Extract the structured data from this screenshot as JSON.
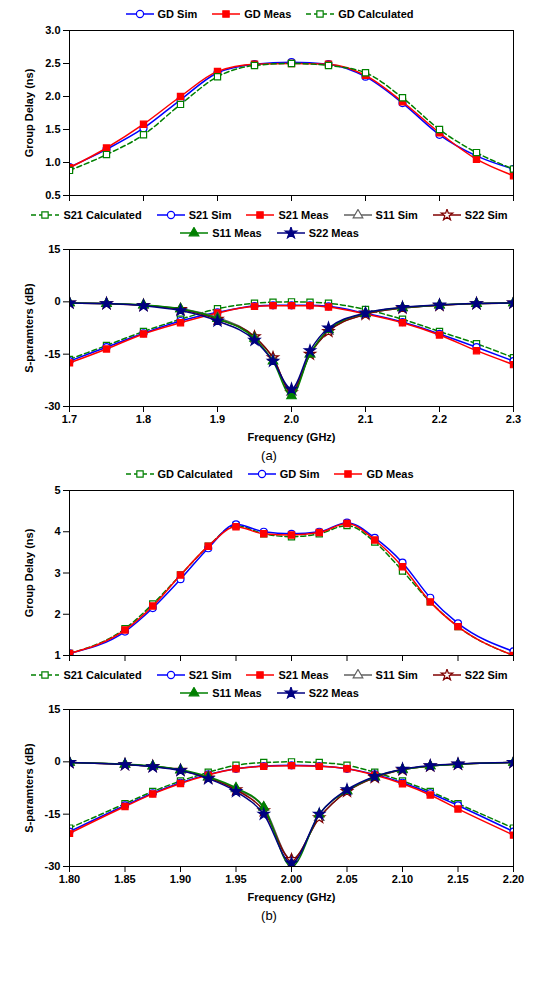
{
  "chart_data": [
    {
      "type": "line",
      "legend": "top",
      "grid": false,
      "tick_labels": "y",
      "y_label": "Group Delay (ns)",
      "xlim": [
        1.7,
        2.3
      ],
      "xticks": [
        1.7,
        1.8,
        1.9,
        {
          "value": 2,
          "label": "2.0"
        },
        2.1,
        2.2,
        2.3
      ],
      "ylim": [
        0.5,
        3.0
      ],
      "yticks": [
        0.5,
        {
          "value": 1,
          "label": "1.0"
        },
        1.5,
        {
          "value": 2,
          "label": "2.0"
        },
        2.5,
        {
          "value": 3,
          "label": "3.0"
        }
      ],
      "x": [
        1.7,
        1.75,
        1.8,
        1.85,
        1.9,
        1.95,
        2.0,
        2.05,
        2.1,
        2.15,
        2.2,
        2.25,
        2.3
      ],
      "series": [
        {
          "name": "GD Sim",
          "color": "#0000ff",
          "marker": "circle-open",
          "line_style": "solid",
          "values": [
            0.93,
            1.2,
            1.52,
            1.95,
            2.36,
            2.49,
            2.52,
            2.49,
            2.3,
            1.9,
            1.42,
            1.1,
            0.9
          ]
        },
        {
          "name": "GD Meas",
          "color": "#ff0000",
          "marker": "square-filled",
          "line_style": "solid",
          "values": [
            0.92,
            1.22,
            1.58,
            2.0,
            2.38,
            2.49,
            2.5,
            2.49,
            2.32,
            1.92,
            1.45,
            1.05,
            0.8
          ]
        },
        {
          "name": "GD Calculated",
          "color": "#008000",
          "marker": "square-open",
          "line_style": "dashed",
          "values": [
            0.88,
            1.12,
            1.42,
            1.88,
            2.3,
            2.47,
            2.5,
            2.47,
            2.36,
            1.98,
            1.5,
            1.15,
            0.9
          ]
        }
      ]
    },
    {
      "type": "line",
      "legend": "top",
      "grid": false,
      "caption": "(a)",
      "x_label": "Frequency (GHz)",
      "y_label": "S-paramters (dB)",
      "xlim": [
        1.7,
        2.3
      ],
      "xticks": [
        1.7,
        1.8,
        1.9,
        {
          "value": 2,
          "label": "2.0"
        },
        2.1,
        2.2,
        2.3
      ],
      "ylim": [
        -30,
        15
      ],
      "yticks": [
        -30,
        -15,
        0,
        15
      ],
      "x": [
        1.7,
        1.75,
        1.8,
        1.85,
        1.9,
        1.95,
        1.975,
        2.0,
        2.025,
        2.05,
        2.1,
        2.15,
        2.2,
        2.25,
        2.3
      ],
      "series": [
        {
          "name": "S21 Calculated",
          "color": "#008000",
          "marker": "square-open",
          "line_style": "dashed",
          "values": [
            -16.5,
            -12.5,
            -8.5,
            -5.0,
            -2.0,
            -0.4,
            -0.1,
            0,
            -0.1,
            -0.4,
            -2.2,
            -5.0,
            -8.5,
            -12,
            -16
          ]
        },
        {
          "name": "S21 Sim",
          "color": "#0000ff",
          "marker": "circle-open",
          "line_style": "solid",
          "values": [
            -17,
            -13,
            -9,
            -5.5,
            -3.0,
            -1.2,
            -1.0,
            -1.0,
            -1.0,
            -1.3,
            -3.3,
            -5.8,
            -9.2,
            -13,
            -17
          ]
        },
        {
          "name": "S21 Meas",
          "color": "#ff0000",
          "marker": "square-filled",
          "line_style": "solid",
          "values": [
            -17.5,
            -13.5,
            -9.2,
            -6.0,
            -3.2,
            -1.3,
            -1.1,
            -1.1,
            -1.1,
            -1.5,
            -3.5,
            -6.0,
            -9.5,
            -14,
            -18
          ]
        },
        {
          "name": "S11 Sim",
          "color": "#606060",
          "marker": "triangle-open",
          "line_style": "solid",
          "values": [
            -0.3,
            -0.5,
            -1.0,
            -2.0,
            -4.5,
            -10,
            -16,
            -26,
            -15,
            -8.5,
            -3.5,
            -1.8,
            -1.0,
            -0.5,
            -0.3
          ]
        },
        {
          "name": "S22 Sim",
          "color": "#800000",
          "marker": "star-open",
          "line_style": "solid",
          "values": [
            -0.3,
            -0.5,
            -1.0,
            -2.2,
            -5.0,
            -10,
            -16,
            -26,
            -15,
            -8.5,
            -3.6,
            -1.8,
            -1.0,
            -0.5,
            -0.3
          ]
        },
        {
          "name": "S11 Meas",
          "color": "#008000",
          "marker": "triangle-filled",
          "line_style": "solid",
          "values": [
            -0.3,
            -0.5,
            -0.9,
            -2.0,
            -4.8,
            -10.5,
            -17,
            -27,
            -15,
            -8,
            -3.3,
            -1.7,
            -0.9,
            -0.5,
            -0.3
          ]
        },
        {
          "name": "S22 Meas",
          "color": "#000080",
          "marker": "star-filled",
          "line_style": "solid",
          "values": [
            -0.3,
            -0.5,
            -1.1,
            -2.5,
            -5.5,
            -11,
            -17,
            -25,
            -14,
            -7.5,
            -3.2,
            -1.6,
            -0.9,
            -0.5,
            -0.3
          ]
        }
      ]
    },
    {
      "type": "line",
      "legend": "top",
      "grid": false,
      "tick_labels": "y",
      "y_label": "Group Delay (ns)",
      "xlim": [
        1.8,
        2.2
      ],
      "xticks": [
        {
          "value": 1.8,
          "label": "1.80"
        },
        1.85,
        {
          "value": 1.9,
          "label": "1.90"
        },
        1.95,
        {
          "value": 2,
          "label": "2.00"
        },
        2.05,
        {
          "value": 2.1,
          "label": "2.10"
        },
        2.15,
        {
          "value": 2.2,
          "label": "2.20"
        }
      ],
      "ylim": [
        1,
        5
      ],
      "yticks": [
        1,
        2,
        3,
        4,
        5
      ],
      "x": [
        1.8,
        1.85,
        1.875,
        1.9,
        1.925,
        1.95,
        1.975,
        2.0,
        2.025,
        2.05,
        2.075,
        2.1,
        2.125,
        2.15,
        2.2
      ],
      "series": [
        {
          "name": "GD Calculated",
          "color": "#008000",
          "marker": "square-open",
          "line_style": "dashed",
          "values": [
            1.05,
            1.65,
            2.25,
            2.95,
            3.65,
            4.15,
            3.95,
            3.88,
            3.95,
            4.15,
            3.75,
            3.05,
            2.3,
            1.7,
            1.0
          ]
        },
        {
          "name": "GD Sim",
          "color": "#0000ff",
          "marker": "circle-open",
          "line_style": "solid",
          "values": [
            1.05,
            1.58,
            2.15,
            2.85,
            3.6,
            4.18,
            4.0,
            3.95,
            4.0,
            4.22,
            3.85,
            3.25,
            2.4,
            1.78,
            1.1
          ]
        },
        {
          "name": "GD Meas",
          "color": "#ff0000",
          "marker": "square-filled",
          "line_style": "solid",
          "values": [
            1.05,
            1.62,
            2.2,
            2.95,
            3.65,
            4.12,
            3.95,
            3.92,
            3.98,
            4.2,
            3.8,
            3.15,
            2.3,
            1.7,
            1.0
          ]
        }
      ]
    },
    {
      "type": "line",
      "legend": "top",
      "grid": false,
      "caption": "(b)",
      "x_label": "Frequency (GHz)",
      "y_label": "S-paramters (dB)",
      "xlim": [
        1.8,
        2.2
      ],
      "xticks": [
        {
          "value": 1.8,
          "label": "1.80"
        },
        1.85,
        {
          "value": 1.9,
          "label": "1.90"
        },
        1.95,
        {
          "value": 2,
          "label": "2.00"
        },
        2.05,
        {
          "value": 2.1,
          "label": "2.10"
        },
        2.15,
        {
          "value": 2.2,
          "label": "2.20"
        }
      ],
      "ylim": [
        -30,
        15
      ],
      "yticks": [
        -30,
        -15,
        0,
        15
      ],
      "x": [
        1.8,
        1.85,
        1.875,
        1.9,
        1.925,
        1.95,
        1.975,
        2.0,
        2.025,
        2.05,
        2.075,
        2.1,
        2.125,
        2.15,
        2.2
      ],
      "series": [
        {
          "name": "S21 Calculated",
          "color": "#008000",
          "marker": "square-open",
          "line_style": "dashed",
          "values": [
            -19,
            -12,
            -8.5,
            -5.5,
            -3.0,
            -1.0,
            -0.2,
            0,
            -0.2,
            -1.0,
            -3.0,
            -5.5,
            -8.5,
            -12,
            -19
          ]
        },
        {
          "name": "S21 Sim",
          "color": "#0000ff",
          "marker": "circle-open",
          "line_style": "solid",
          "values": [
            -20,
            -12.5,
            -9,
            -6,
            -3.6,
            -2.0,
            -1.2,
            -1.0,
            -1.2,
            -2.0,
            -3.6,
            -6,
            -9,
            -12.5,
            -20
          ]
        },
        {
          "name": "S21 Meas",
          "color": "#ff0000",
          "marker": "square-filled",
          "line_style": "solid",
          "values": [
            -20.5,
            -12.8,
            -9.2,
            -6.2,
            -3.8,
            -2.0,
            -1.3,
            -1.1,
            -1.3,
            -2.0,
            -3.8,
            -6.3,
            -9.5,
            -13.5,
            -21
          ]
        },
        {
          "name": "S11 Sim",
          "color": "#606060",
          "marker": "triangle-open",
          "line_style": "solid",
          "values": [
            -0.2,
            -0.8,
            -1.3,
            -2.4,
            -4.5,
            -7.8,
            -13,
            -28,
            -16,
            -8.5,
            -4.5,
            -2.3,
            -1.2,
            -0.7,
            -0.2
          ]
        },
        {
          "name": "S22 Sim",
          "color": "#800000",
          "marker": "star-open",
          "line_style": "solid",
          "values": [
            -0.2,
            -0.8,
            -1.3,
            -2.4,
            -4.6,
            -8,
            -14,
            -28,
            -16,
            -8.5,
            -4.5,
            -2.3,
            -1.2,
            -0.7,
            -0.2
          ]
        },
        {
          "name": "S11 Meas",
          "color": "#008000",
          "marker": "triangle-filled",
          "line_style": "solid",
          "values": [
            -0.2,
            -0.7,
            -1.2,
            -2.3,
            -4.3,
            -7.5,
            -13,
            -30,
            -15,
            -8.3,
            -4.3,
            -2.2,
            -1.2,
            -0.7,
            -0.2
          ]
        },
        {
          "name": "S22 Meas",
          "color": "#000080",
          "marker": "star-filled",
          "line_style": "solid",
          "values": [
            -0.2,
            -0.8,
            -1.4,
            -2.5,
            -4.8,
            -8.5,
            -15,
            -29,
            -15,
            -8.0,
            -4.2,
            -2.1,
            -1.1,
            -0.6,
            -0.2
          ]
        }
      ]
    }
  ]
}
